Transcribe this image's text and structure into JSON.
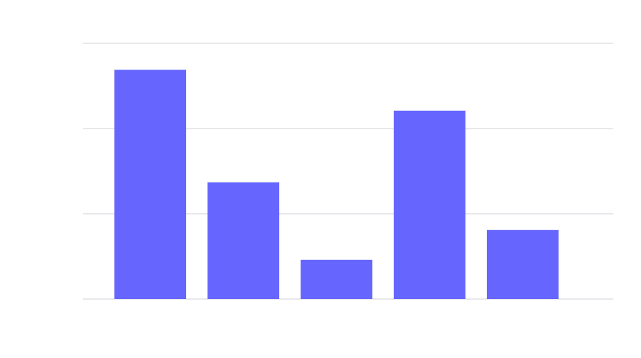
{
  "chart_data": {
    "type": "bar",
    "categories": [
      null,
      null,
      null,
      null,
      null
    ],
    "values": [
      2.69,
      1.37,
      0.46,
      2.21,
      0.81
    ],
    "color": "#6666ff",
    "ylim": [
      0,
      3
    ],
    "yticks": [
      0,
      1,
      2,
      3
    ],
    "grid": true
  }
}
